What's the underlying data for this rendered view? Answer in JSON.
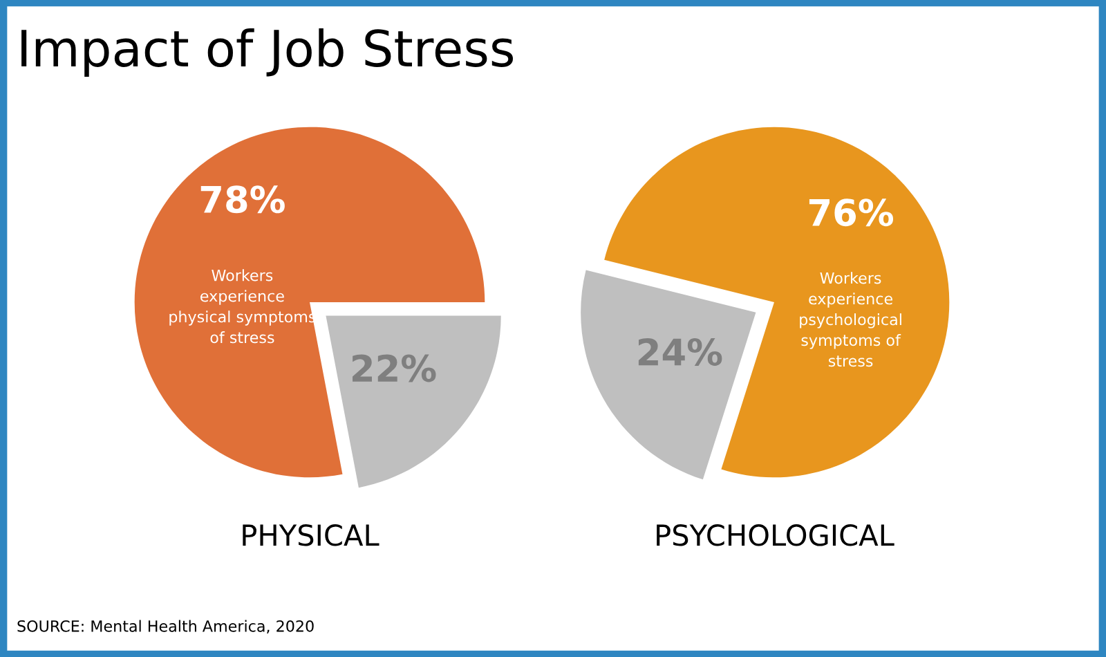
{
  "chart_data": [
    {
      "type": "pie",
      "title": "Impact of Job Stress",
      "xlabel": "PHYSICAL",
      "categories": [
        "Workers experience physical symptoms of stress",
        null
      ],
      "values": [
        78,
        22
      ],
      "value_labels": [
        "78%",
        "22%"
      ],
      "colors": [
        "#e07038",
        "#bfbfbf"
      ],
      "legend": false
    },
    {
      "type": "pie",
      "xlabel": "PSYCHOLOGICAL",
      "categories": [
        "Workers experience psychological symptoms of stress",
        null
      ],
      "values": [
        76,
        24
      ],
      "value_labels": [
        "76%",
        "24%"
      ],
      "colors": [
        "#e8961e",
        "#bfbfbf"
      ],
      "legend": false,
      "annotations": [
        "SOURCE: Mental Health America, 2020"
      ]
    }
  ]
}
